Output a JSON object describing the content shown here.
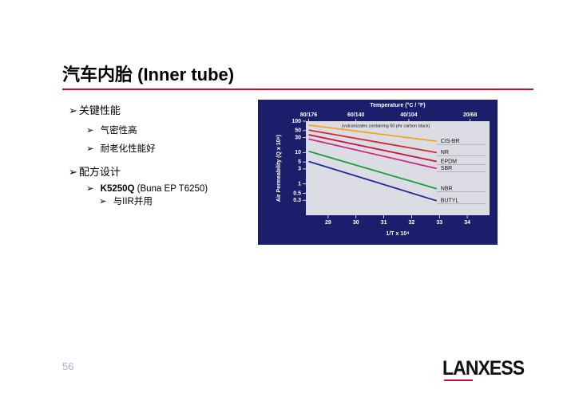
{
  "header": {
    "title": "汽车内胎  (Inner tube)"
  },
  "bullets": [
    {
      "text": "关键性能",
      "items": [
        "气密性高",
        "耐老化性能好"
      ]
    },
    {
      "text": "配方设计",
      "items_rich": [
        {
          "bold": "K5250Q",
          "rest": " (Buna EP T6250)",
          "line2": "与IIR并用"
        }
      ]
    }
  ],
  "page_number": "56",
  "logo": "LANXESS",
  "chart_data": {
    "type": "line",
    "title": "Temperature (°C / °F)",
    "annotation": "(vulcanizates containing 50 phr carbon black)",
    "y_label": "Air Permeability (Q x 10⁸)",
    "x_label": "1/T x 10⁴",
    "yscale": "log",
    "ylim": [
      0.1,
      100
    ],
    "yticks": [
      100,
      50,
      30,
      10,
      5,
      3,
      1,
      0.5,
      0.3
    ],
    "xlim": [
      28.2,
      34.8
    ],
    "xticks": [
      29,
      30,
      31,
      32,
      33,
      34
    ],
    "x2ticks": [
      {
        "value": 28.3,
        "label": "80/176"
      },
      {
        "value": 30.0,
        "label": "60/140"
      },
      {
        "value": 31.9,
        "label": "40/104"
      },
      {
        "value": 34.1,
        "label": "20/68"
      }
    ],
    "x": [
      28.3,
      32.9
    ],
    "series": [
      {
        "name": "CIS-BR",
        "color": "#f2a51d",
        "values": [
          75,
          23
        ]
      },
      {
        "name": "NR",
        "color": "#d42a2a",
        "values": [
          52,
          10
        ]
      },
      {
        "name": "EPDM",
        "color": "#c8143c",
        "values": [
          37,
          5.2
        ]
      },
      {
        "name": "SBR",
        "color": "#d0287e",
        "values": [
          27,
          3.1
        ]
      },
      {
        "name": "NBR",
        "color": "#16a03a",
        "values": [
          11,
          0.7
        ]
      },
      {
        "name": "BUTYL",
        "color": "#1c2a9c",
        "values": [
          5.2,
          0.29
        ]
      }
    ]
  }
}
